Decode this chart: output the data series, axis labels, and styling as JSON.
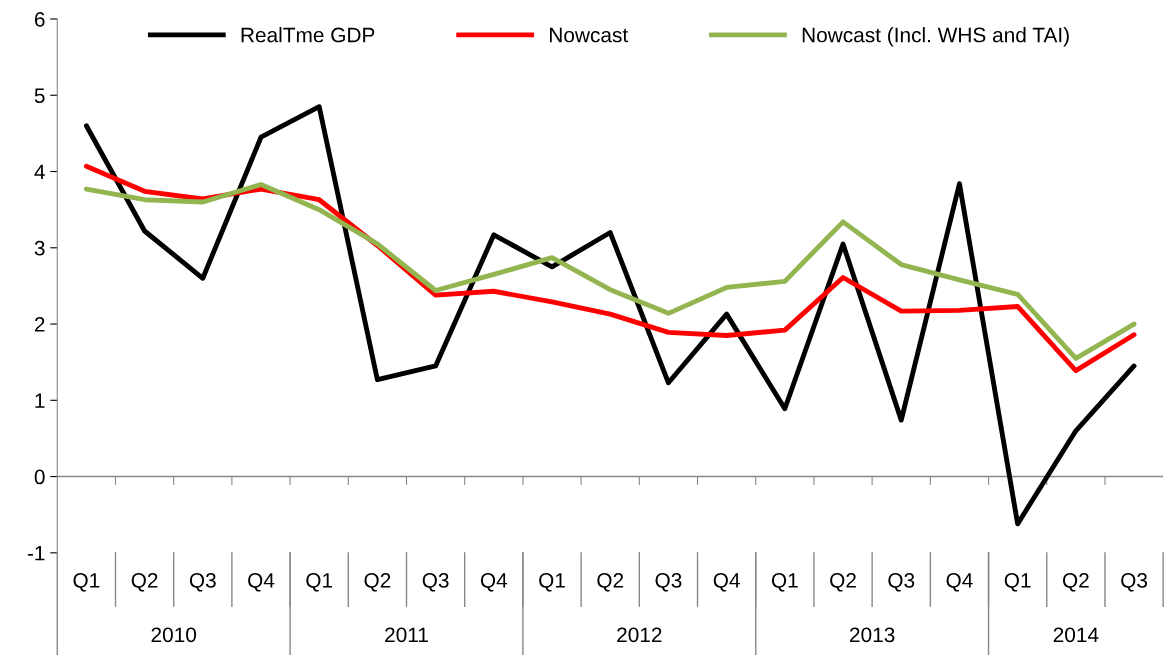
{
  "chart_data": {
    "type": "line",
    "categories": [
      "Q1",
      "Q2",
      "Q3",
      "Q4",
      "Q1",
      "Q2",
      "Q3",
      "Q4",
      "Q1",
      "Q2",
      "Q3",
      "Q4",
      "Q1",
      "Q2",
      "Q3",
      "Q4",
      "Q1",
      "Q2",
      "Q3"
    ],
    "series": [
      {
        "name": "RealTme GDP",
        "color": "#000000",
        "values": [
          4.6,
          3.22,
          2.6,
          4.45,
          4.85,
          1.27,
          1.45,
          3.17,
          2.75,
          3.2,
          1.23,
          2.13,
          0.89,
          3.05,
          0.74,
          3.84,
          -0.62,
          0.6,
          1.45
        ]
      },
      {
        "name": "Nowcast",
        "color": "#ff0000",
        "values": [
          4.07,
          3.74,
          3.64,
          3.77,
          3.63,
          3.03,
          2.38,
          2.43,
          2.29,
          2.13,
          1.89,
          1.85,
          1.92,
          2.61,
          2.17,
          2.18,
          2.23,
          1.39,
          1.86
        ]
      },
      {
        "name": "Nowcast (Incl. WHS and TAI)",
        "color": "#92b550",
        "values": [
          3.77,
          3.63,
          3.6,
          3.83,
          3.5,
          3.05,
          2.44,
          2.65,
          2.87,
          2.45,
          2.14,
          2.48,
          2.56,
          3.34,
          2.78,
          2.58,
          2.39,
          1.55,
          2.0
        ]
      }
    ],
    "annotations": [
      "2010",
      "2011",
      "2012",
      "2013",
      "2014"
    ],
    "ylim": [
      -1,
      6
    ],
    "yticks": [
      -1,
      0,
      1,
      2,
      3,
      4,
      5,
      6
    ],
    "ref_lines": [
      {
        "axis": "y",
        "value": 0,
        "color": "#888888",
        "line_style": "solid"
      }
    ],
    "grid": false,
    "legend": "top",
    "marker": "none",
    "line_style": "solid"
  }
}
